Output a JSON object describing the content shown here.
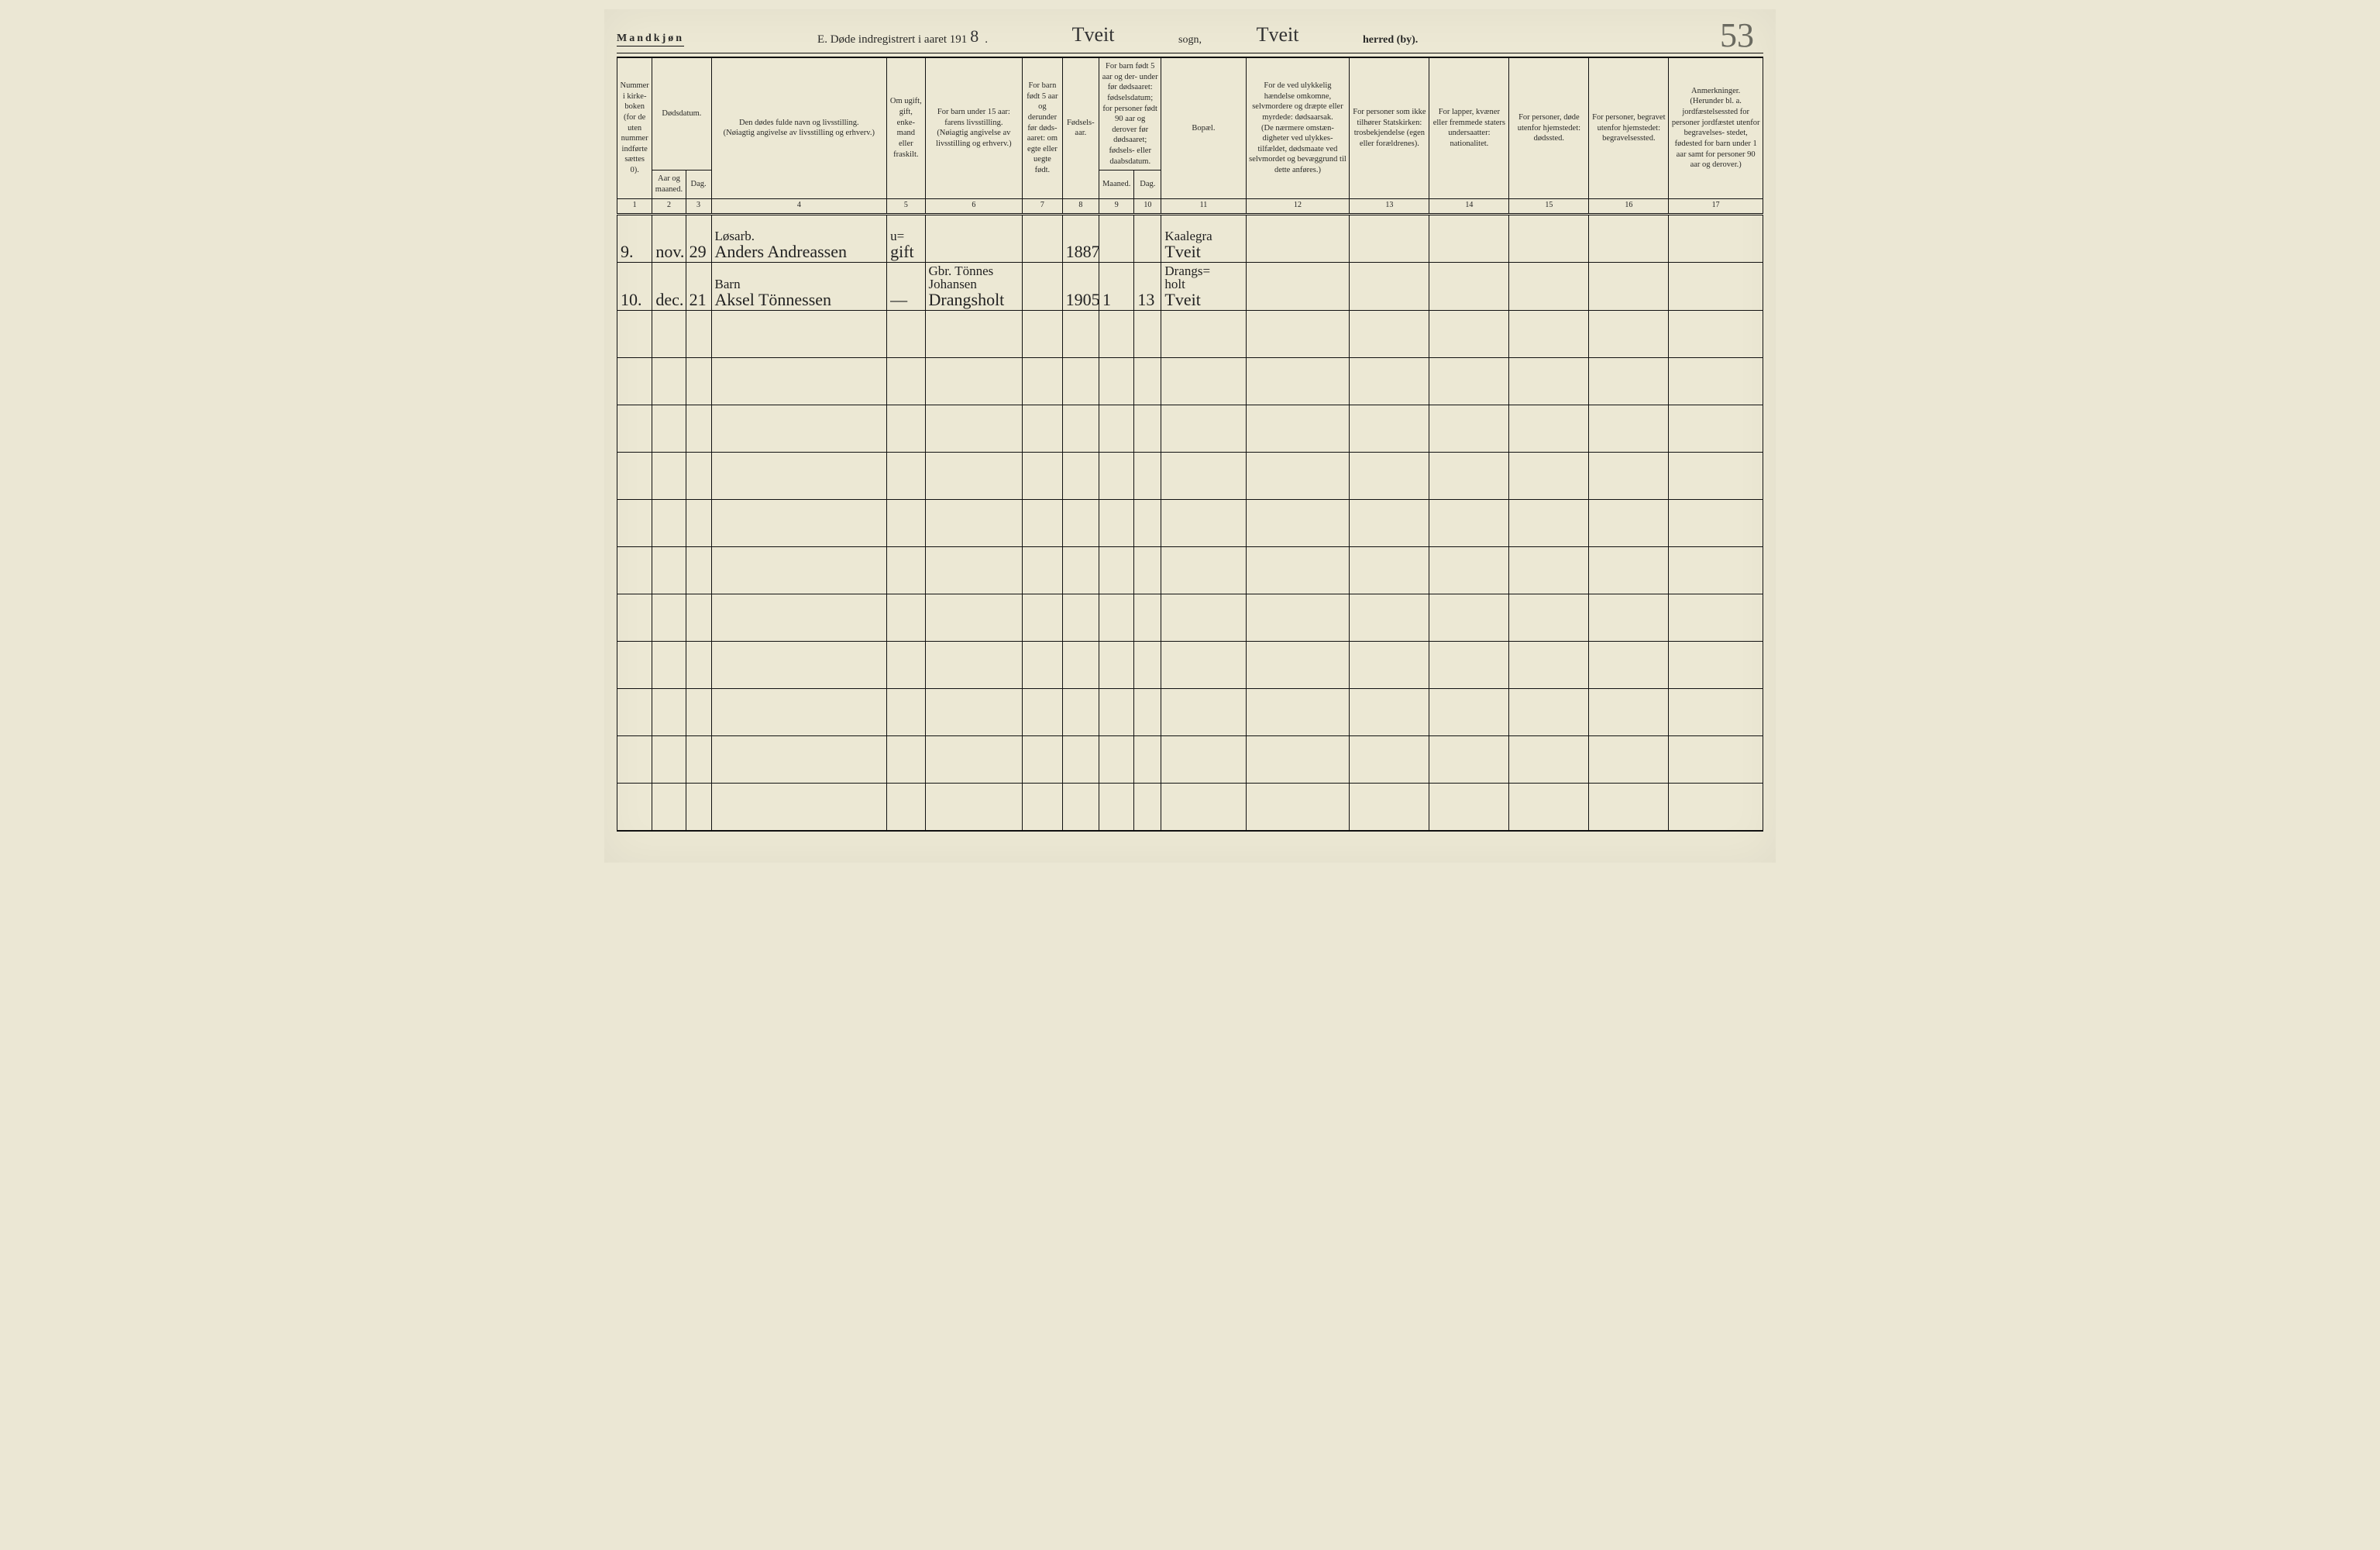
{
  "header": {
    "gender": "Mandkjøn",
    "title_prefix": "E.  Døde indregistrert i aaret 191",
    "year_last_digit": "8",
    "dot": ".",
    "parish_script": "Tveit",
    "label_sogn": "sogn,",
    "district_script": "Tveit",
    "label_herred": "herred (by).",
    "page_number": "53"
  },
  "columns": {
    "c1": {
      "header": "Nummer i kirke- boken (for de uten nummer indførte sættes 0).",
      "num": "1"
    },
    "c2": {
      "header": "Dødsdatum.",
      "sub_a": "Aar og maaned.",
      "sub_b": "Dag.",
      "num_a": "2",
      "num_b": "3"
    },
    "c4": {
      "header": "Den dødes fulde navn og livsstilling.",
      "sub": "(Nøiagtig angivelse av livsstilling og erhverv.)",
      "num": "4"
    },
    "c5": {
      "header": "Om ugift, gift, enke- mand eller fraskilt.",
      "num": "5"
    },
    "c6": {
      "header": "For barn under 15 aar: farens livsstilling.",
      "sub": "(Nøiagtig angivelse av livsstilling og erhverv.)",
      "num": "6"
    },
    "c7": {
      "header": "For barn født 5 aar og derunder før døds- aaret: om egte eller uegte født.",
      "num": "7"
    },
    "c8": {
      "header": "Fødsels- aar.",
      "num": "8"
    },
    "c9": {
      "header": "For barn født 5 aar og der- under før dødsaaret: fødselsdatum; for personer født 90 aar og derover før dødsaaret; fødsels- eller daabsdatum.",
      "sub_a": "Maaned.",
      "sub_b": "Dag.",
      "num_a": "9",
      "num_b": "10"
    },
    "c11": {
      "header": "Bopæl.",
      "num": "11"
    },
    "c12": {
      "header": "For de ved ulykkelig hændelse omkomne, selvmordere og dræpte eller myrdede: dødsaarsak.",
      "sub": "(De nærmere omstæn- digheter ved ulykkes- tilfældet, dødsmaate ved selvmordet og bevæggrund til dette anføres.)",
      "num": "12"
    },
    "c13": {
      "header": "For personer som ikke tilhører Statskirken: trosbekjendelse (egen eller forældrenes).",
      "num": "13"
    },
    "c14": {
      "header": "For lapper, kvæner eller fremmede staters undersaatter: nationalitet.",
      "num": "14"
    },
    "c15": {
      "header": "For personer, døde utenfor hjemstedet: dødssted.",
      "num": "15"
    },
    "c16": {
      "header": "For personer, begravet utenfor hjemstedet: begravelsessted.",
      "num": "16"
    },
    "c17": {
      "header": "Anmerkninger.",
      "sub": "(Herunder bl. a. jordfæstelsessted for personer jordfæstet utenfor begravelses- stedet, fødested for barn under 1 aar samt for personer 90 aar og derover.)",
      "num": "17"
    }
  },
  "rows": [
    {
      "num": "9.",
      "month": "nov.",
      "day": "29",
      "name_top": "Løsarb.",
      "name": "Anders Andreassen",
      "civil_top": "u=",
      "civil": "gift",
      "father": "",
      "legit": "",
      "birth_year": "1887",
      "bd_month": "",
      "bd_day": "",
      "residence_top": "Kaalegra",
      "residence": "Tveit"
    },
    {
      "num": "10.",
      "month": "dec.",
      "day": "21",
      "name_top": "Barn",
      "name": "Aksel Tönnessen",
      "civil_top": "",
      "civil": "—",
      "father_top": "Gbr. Tönnes",
      "father_mid": "Johansen",
      "father": "Drangsholt",
      "legit": "",
      "birth_year": "1905",
      "bd_month": "1",
      "bd_day": "13",
      "residence_top": "Drangs=",
      "residence_mid": "holt",
      "residence": "Tveit"
    }
  ],
  "blank_rows": 11
}
